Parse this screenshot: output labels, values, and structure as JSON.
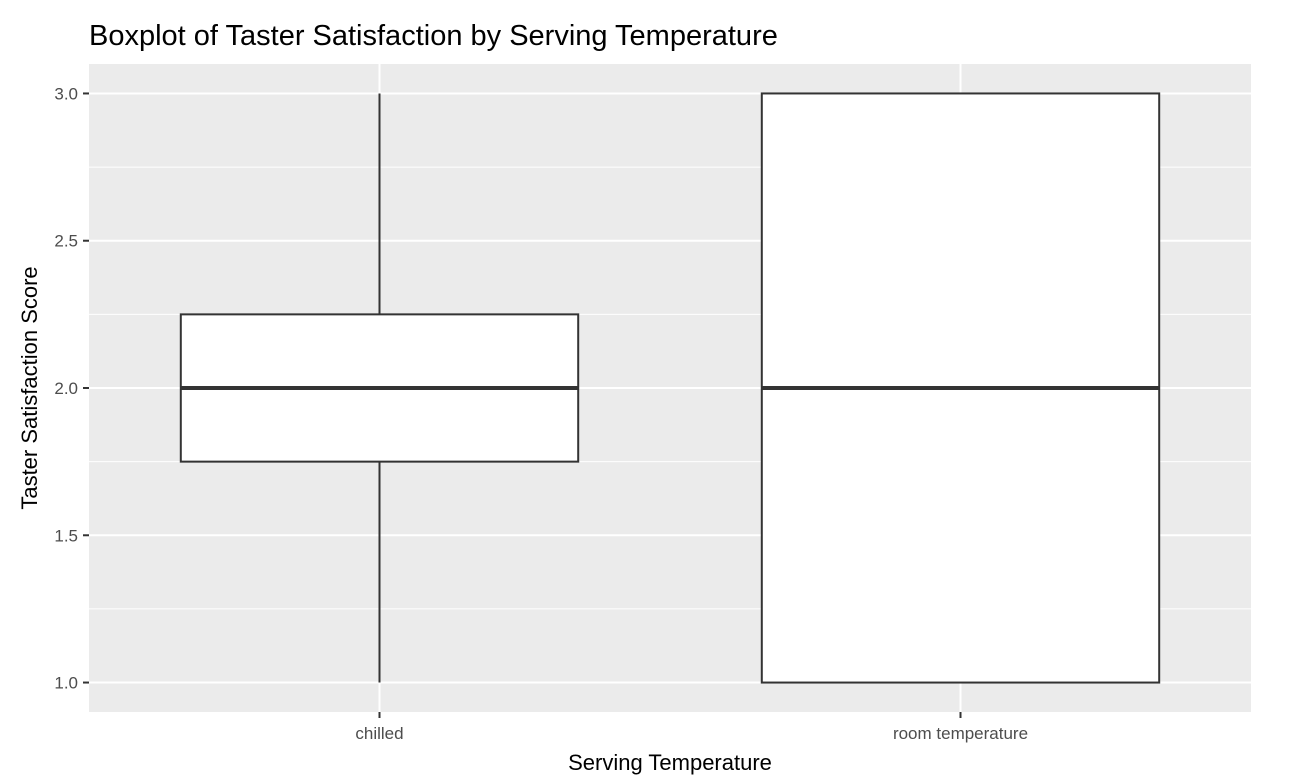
{
  "chart_data": {
    "type": "boxplot",
    "title": "Boxplot of Taster Satisfaction by Serving Temperature",
    "xlabel": "Serving Temperature",
    "ylabel": "Taster Satisfaction Score",
    "categories": [
      "chilled",
      "room temperature"
    ],
    "boxes": [
      {
        "category": "chilled",
        "whisker_low": 1.0,
        "q1": 1.75,
        "median": 2.0,
        "q3": 2.25,
        "whisker_high": 3.0
      },
      {
        "category": "room temperature",
        "whisker_low": 1.0,
        "q1": 1.0,
        "median": 2.0,
        "q3": 3.0,
        "whisker_high": 3.0
      }
    ],
    "yticks": [
      {
        "value": 1.0,
        "label": "1.0"
      },
      {
        "value": 1.5,
        "label": "1.5"
      },
      {
        "value": 2.0,
        "label": "2.0"
      },
      {
        "value": 2.5,
        "label": "2.5"
      },
      {
        "value": 3.0,
        "label": "3.0"
      }
    ],
    "ylim": [
      0.9,
      3.1
    ],
    "grid": true,
    "legend": "none",
    "colors": {
      "panel_background": "#ebebeb",
      "grid_line": "#ffffff",
      "box_fill": "#ffffff",
      "box_stroke": "#333333",
      "tick_mark": "#333333"
    }
  }
}
